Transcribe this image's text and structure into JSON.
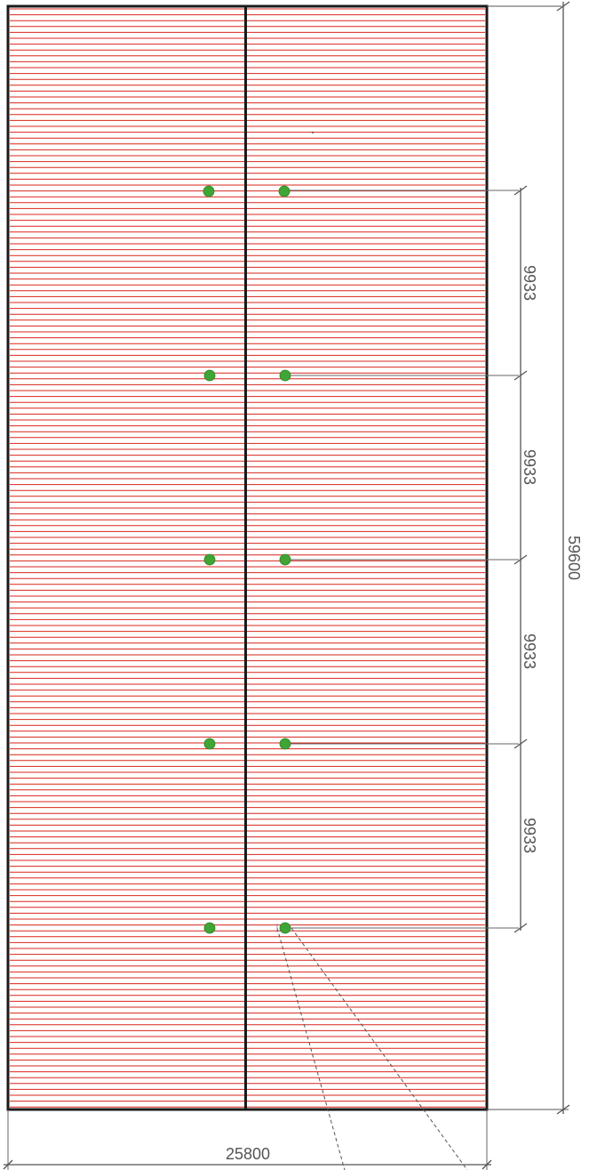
{
  "drawing": {
    "overall_length": "59600",
    "overall_width": "25800",
    "spacing_labels": [
      "9933",
      "9933",
      "9933",
      "9933"
    ],
    "anchor_points_per_side": 5,
    "colors": {
      "outline": "#1a1a1a",
      "hatch": "#d9251c",
      "anchor": "#3fa535",
      "dimension": "#555555"
    }
  }
}
